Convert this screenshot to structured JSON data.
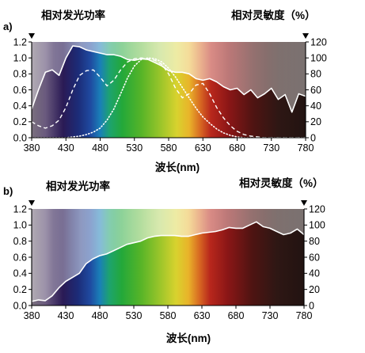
{
  "colors": {
    "background": "#ffffff",
    "curve_stroke": "#ffffff",
    "axis": "#000000"
  },
  "chart_data": [
    {
      "type": "area",
      "panel_label": "a)",
      "left_axis_title": "相对发光功率",
      "right_axis_title": "相对灵敏度（%）",
      "xlabel": "波长(nm)",
      "xlim": [
        380,
        780
      ],
      "ylim": [
        0,
        1.2
      ],
      "ylim_right": [
        0,
        120
      ],
      "x_ticks": [
        380,
        430,
        480,
        530,
        580,
        630,
        680,
        730,
        780
      ],
      "x_tick_labels": [
        "380",
        "430",
        "480",
        "530",
        "580",
        "630",
        "680",
        "730",
        "780"
      ],
      "y_ticks": [
        0,
        0.2,
        0.4,
        0.6,
        0.8,
        1.0,
        1.2
      ],
      "y_tick_labels": [
        "0.0",
        "0.2",
        "0.4",
        "0.6",
        "0.8",
        "1.0",
        "1.2"
      ],
      "y_right_ticks": [
        0,
        20,
        40,
        60,
        80,
        100,
        120
      ],
      "y_right_tick_labels": [
        "0",
        "20",
        "40",
        "60",
        "80",
        "100",
        "120"
      ],
      "spectrum_background": true,
      "grid": false,
      "series": [
        {
          "role": "relative_power_curve",
          "style": "solid",
          "x": [
            380,
            390,
            400,
            410,
            420,
            430,
            440,
            450,
            460,
            470,
            480,
            490,
            500,
            510,
            520,
            530,
            540,
            550,
            560,
            570,
            580,
            590,
            600,
            610,
            620,
            630,
            640,
            650,
            660,
            670,
            680,
            690,
            700,
            710,
            720,
            730,
            740,
            750,
            760,
            770,
            780
          ],
          "values": [
            0.36,
            0.6,
            0.82,
            0.85,
            0.78,
            1.0,
            1.15,
            1.14,
            1.1,
            1.08,
            1.06,
            1.04,
            1.04,
            1.02,
            0.98,
            0.97,
            0.99,
            0.98,
            0.94,
            0.9,
            0.84,
            0.82,
            0.82,
            0.8,
            0.74,
            0.72,
            0.74,
            0.7,
            0.64,
            0.6,
            0.62,
            0.54,
            0.6,
            0.5,
            0.55,
            0.62,
            0.48,
            0.54,
            0.32,
            0.55,
            0.52
          ]
        },
        {
          "role": "sensitivity_curve_1",
          "style": "dashed",
          "x": [
            380,
            390,
            400,
            410,
            420,
            430,
            440,
            450,
            460,
            470,
            480,
            490,
            500,
            510,
            520,
            530,
            540,
            550,
            560,
            570,
            580,
            590,
            600,
            610,
            620,
            630,
            640,
            650,
            660,
            670,
            680,
            690,
            700,
            710,
            720,
            730,
            740,
            750,
            760,
            770,
            780
          ],
          "values": [
            20,
            15,
            12,
            15,
            22,
            38,
            60,
            78,
            84,
            85,
            76,
            65,
            72,
            85,
            95,
            99,
            100,
            99,
            97,
            92,
            80,
            62,
            50,
            55,
            66,
            68,
            55,
            38,
            25,
            15,
            8,
            4,
            2,
            1,
            0,
            0,
            0,
            0,
            0,
            0,
            0
          ]
        },
        {
          "role": "sensitivity_curve_2",
          "style": "dotted",
          "x": [
            380,
            390,
            400,
            410,
            420,
            430,
            440,
            450,
            460,
            470,
            480,
            490,
            500,
            510,
            520,
            530,
            540,
            550,
            560,
            570,
            580,
            590,
            600,
            610,
            620,
            630,
            640,
            650,
            660,
            670,
            680,
            690,
            700,
            710,
            720,
            730,
            740,
            750,
            760,
            770,
            780
          ],
          "values": [
            0,
            0,
            0,
            0,
            0,
            0,
            1,
            2,
            4,
            7,
            12,
            22,
            36,
            55,
            75,
            90,
            98,
            100,
            99,
            95,
            87,
            76,
            63,
            50,
            37,
            26,
            18,
            11,
            6,
            3,
            1,
            0,
            0,
            0,
            0,
            0,
            0,
            0,
            0,
            0,
            0
          ]
        }
      ]
    },
    {
      "type": "area",
      "panel_label": "b)",
      "left_axis_title": "相对发光功率",
      "right_axis_title": "相对灵敏度（%）",
      "xlabel": "波长(nm)",
      "xlim": [
        380,
        780
      ],
      "ylim": [
        0,
        1.2
      ],
      "ylim_right": [
        0,
        120
      ],
      "x_ticks": [
        380,
        430,
        480,
        530,
        580,
        630,
        680,
        730,
        780
      ],
      "x_tick_labels": [
        "380",
        "430",
        "480",
        "530",
        "580",
        "630",
        "680",
        "730",
        "780"
      ],
      "y_ticks": [
        0,
        0.2,
        0.4,
        0.6,
        0.8,
        1.0,
        1.2
      ],
      "y_tick_labels": [
        "0.0",
        "0.2",
        "0.4",
        "0.6",
        "0.8",
        "1.0",
        "1.2"
      ],
      "y_right_ticks": [
        0,
        20,
        40,
        60,
        80,
        100,
        120
      ],
      "y_right_tick_labels": [
        "0",
        "20",
        "40",
        "60",
        "80",
        "100",
        "120"
      ],
      "spectrum_background": true,
      "grid": false,
      "series": [
        {
          "role": "relative_power_curve",
          "style": "solid",
          "x": [
            380,
            390,
            400,
            410,
            420,
            430,
            440,
            450,
            460,
            470,
            480,
            490,
            500,
            510,
            520,
            530,
            540,
            550,
            560,
            570,
            580,
            590,
            600,
            610,
            620,
            630,
            640,
            650,
            660,
            670,
            680,
            690,
            700,
            710,
            720,
            730,
            740,
            750,
            760,
            770,
            780
          ],
          "values": [
            0.05,
            0.07,
            0.06,
            0.12,
            0.22,
            0.3,
            0.35,
            0.4,
            0.52,
            0.58,
            0.62,
            0.64,
            0.68,
            0.72,
            0.76,
            0.78,
            0.8,
            0.84,
            0.86,
            0.87,
            0.87,
            0.87,
            0.86,
            0.86,
            0.88,
            0.9,
            0.91,
            0.92,
            0.94,
            0.97,
            0.96,
            0.96,
            1.0,
            1.04,
            0.98,
            0.96,
            0.92,
            0.88,
            0.9,
            0.95,
            0.88
          ]
        }
      ]
    }
  ]
}
